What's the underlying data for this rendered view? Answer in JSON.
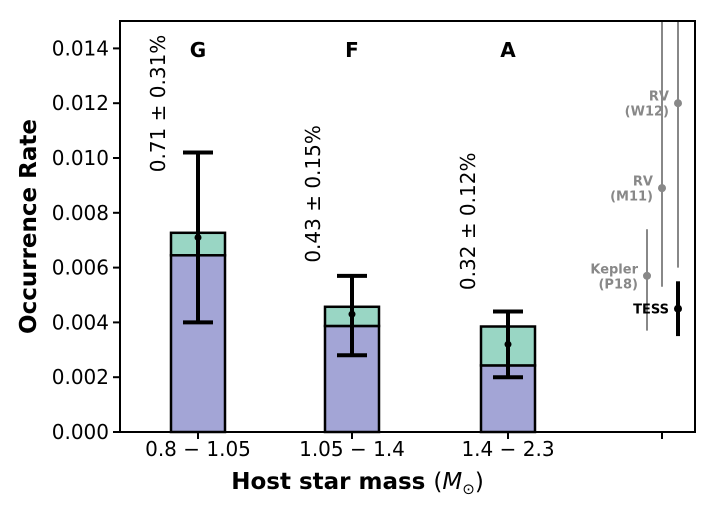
{
  "chart_data": {
    "type": "bar",
    "xlabel": "Host star mass",
    "xlabel_unit": "M",
    "xlabel_unit_sub": "⊙",
    "ylabel": "Occurrence Rate",
    "ylim": [
      0,
      0.015
    ],
    "yticks": [
      "0.000",
      "0.002",
      "0.004",
      "0.006",
      "0.008",
      "0.010",
      "0.012",
      "0.014"
    ],
    "categories": [
      "0.8 − 1.05",
      "1.05 − 1.4",
      "1.4 − 2.3"
    ],
    "spectral_types": [
      "G",
      "F",
      "A"
    ],
    "rate_labels": [
      "0.71 ± 0.31%",
      "0.43 ± 0.15%",
      "0.32 ± 0.12%"
    ],
    "series": [
      {
        "values": [
          0.00645,
          0.00387,
          0.00243
        ],
        "color": "#a3a5d6"
      },
      {
        "values": [
          0.00082,
          0.0007,
          0.00142
        ],
        "color": "#99d6c4"
      }
    ],
    "points": [
      {
        "value": 0.0071,
        "err_low": 0.004,
        "err_high": 0.0102
      },
      {
        "value": 0.0043,
        "err_low": 0.0028,
        "err_high": 0.0057
      },
      {
        "value": 0.0032,
        "err_low": 0.002,
        "err_high": 0.0044
      }
    ],
    "references": [
      {
        "label": [
          "RV",
          "(W12)"
        ],
        "value": 0.012,
        "line_low": 0.006,
        "line_high": 0.0151,
        "color": "#888888",
        "lw": 2
      },
      {
        "label": [
          "RV",
          "(M11)"
        ],
        "value": 0.0089,
        "line_low": 0.0053,
        "line_high": 0.0151,
        "color": "#888888",
        "lw": 2
      },
      {
        "label": [
          "Kepler",
          "(P18)"
        ],
        "value": 0.0057,
        "line_low": 0.0037,
        "line_high": 0.0074,
        "color": "#888888",
        "lw": 2
      },
      {
        "label": [
          "TESS"
        ],
        "value": 0.0045,
        "line_low": 0.0035,
        "line_high": 0.0055,
        "color": "#000000",
        "lw": 4
      }
    ]
  }
}
